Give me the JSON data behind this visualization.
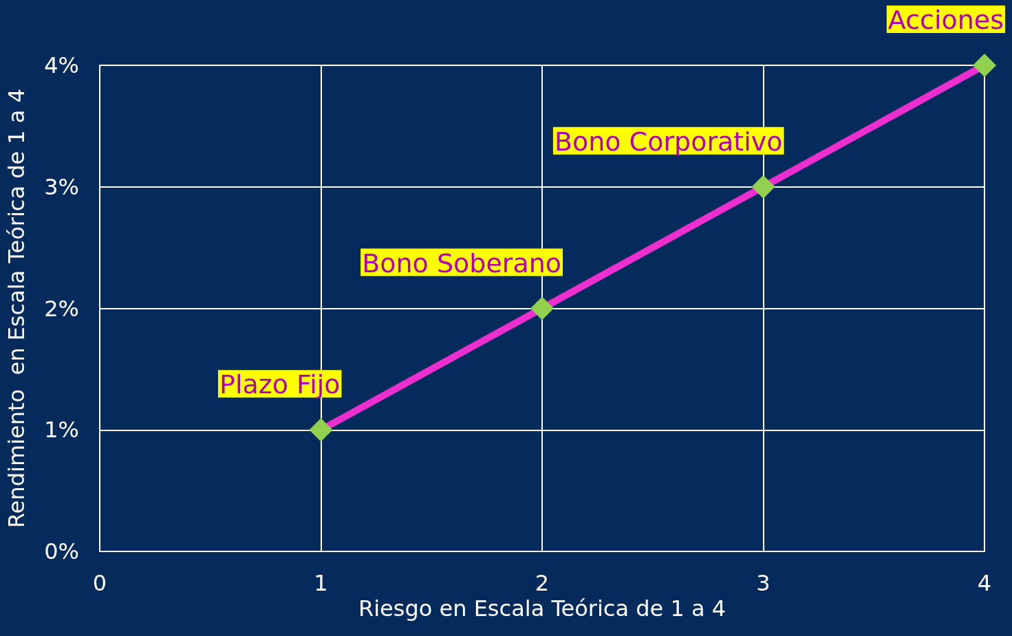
{
  "chart_data": {
    "type": "line",
    "xlabel": "Riesgo en Escala Teórica de 1 a 4",
    "ylabel": "Rendimiento  en Escala Teórica de 1 a 4",
    "x": [
      1,
      2,
      3,
      4
    ],
    "series": [
      {
        "color": "#ee2fd0",
        "colors": [
          "#92d050",
          "#92d050",
          "#92d050",
          "#92d050"
        ],
        "values": [
          1,
          2,
          3,
          4
        ]
      }
    ],
    "xlim": [
      0,
      4
    ],
    "xticks": [
      0,
      1,
      2,
      3,
      4
    ],
    "ylim": [
      0,
      4
    ],
    "yticks": [
      {
        "value": 0,
        "label": "0%"
      },
      {
        "value": 1,
        "label": "1%"
      },
      {
        "value": 2,
        "label": "2%"
      },
      {
        "value": 3,
        "label": "3%"
      },
      {
        "value": 4,
        "label": "4%"
      }
    ],
    "grid": true,
    "marker": "diamond",
    "line_style": "solid",
    "annotations": [
      {
        "text": "Plazo Fijo",
        "x": 1,
        "y": 1
      },
      {
        "text": "Bono Soberano",
        "x": 2,
        "y": 2
      },
      {
        "text": "Bono Corporativo",
        "x": 3,
        "y": 3
      },
      {
        "text": "Acciones",
        "x": 4,
        "y": 4
      }
    ]
  }
}
